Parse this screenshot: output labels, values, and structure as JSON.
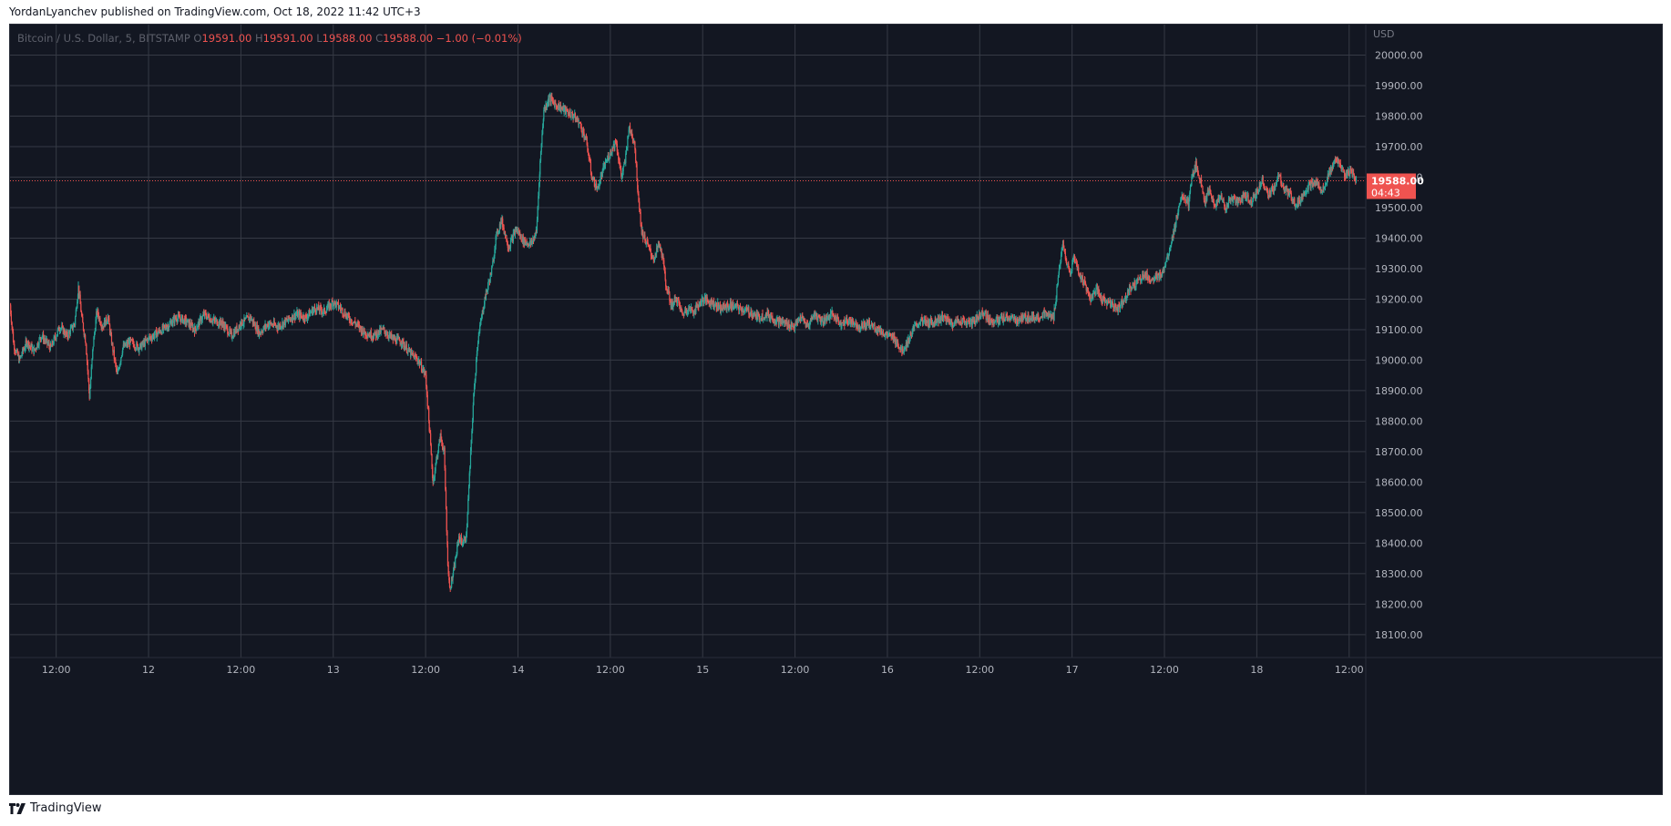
{
  "header": {
    "publish_line": "YordanLyanchev published on TradingView.com, Oct 18, 2022 11:42 UTC+3"
  },
  "legend": {
    "symbol": "Bitcoin / U.S. Dollar, 5, BITSTAMP",
    "o_label": "O",
    "o_value": "19591.00",
    "h_label": "H",
    "h_value": "19591.00",
    "l_label": "L",
    "l_value": "19588.00",
    "c_label": "C",
    "c_value": "19588.00",
    "change": "−1.00 (−0.01%)"
  },
  "footer": {
    "brand": "TradingView"
  },
  "colors": {
    "background": "#131722",
    "grid": "#363a45",
    "up": "#26a69a",
    "down": "#ef5350",
    "axis_text": "#b2b5be",
    "price_line": "#ef5350"
  },
  "chart_data": {
    "type": "candlestick",
    "symbol": "Bitcoin / U.S. Dollar",
    "interval": "5",
    "exchange": "BITSTAMP",
    "currency": "USD",
    "grid": true,
    "ylim": [
      18025,
      20100
    ],
    "y_ticks": [
      20000,
      19900,
      19800,
      19700,
      19600,
      19500,
      19400,
      19300,
      19200,
      19100,
      19000,
      18900,
      18800,
      18700,
      18600,
      18500,
      18400,
      18300,
      18200,
      18100
    ],
    "y_tick_labels": [
      "20000.00",
      "19900.00",
      "19800.00",
      "19700.00",
      "19600.00",
      "19500.00",
      "19400.00",
      "19300.00",
      "19200.00",
      "19100.00",
      "19000.00",
      "18900.00",
      "18800.00",
      "18700.00",
      "18600.00",
      "18500.00",
      "18400.00",
      "18300.00",
      "18200.00",
      "18100.00"
    ],
    "x_range_days": [
      11.25,
      18.59
    ],
    "x_ticks": [
      11.5,
      12.0,
      12.5,
      13.0,
      13.5,
      14.0,
      14.5,
      15.0,
      15.5,
      16.0,
      16.5,
      17.0,
      17.5,
      18.0,
      18.5
    ],
    "x_tick_labels": [
      "12:00",
      "12",
      "12:00",
      "13",
      "12:00",
      "14",
      "12:00",
      "15",
      "12:00",
      "16",
      "12:00",
      "17",
      "12:00",
      "18",
      "12:00"
    ],
    "last_price": "19588.00",
    "last_price_value": 19588,
    "countdown": "04:43",
    "close_path_day_price": [
      [
        11.25,
        19180
      ],
      [
        11.27,
        19050
      ],
      [
        11.3,
        19000
      ],
      [
        11.34,
        19060
      ],
      [
        11.38,
        19030
      ],
      [
        11.42,
        19080
      ],
      [
        11.47,
        19040
      ],
      [
        11.52,
        19110
      ],
      [
        11.56,
        19080
      ],
      [
        11.6,
        19120
      ],
      [
        11.62,
        19240
      ],
      [
        11.64,
        19130
      ],
      [
        11.66,
        19060
      ],
      [
        11.68,
        18880
      ],
      [
        11.7,
        19050
      ],
      [
        11.72,
        19160
      ],
      [
        11.75,
        19110
      ],
      [
        11.78,
        19140
      ],
      [
        11.8,
        19060
      ],
      [
        11.83,
        18950
      ],
      [
        11.86,
        19040
      ],
      [
        11.9,
        19060
      ],
      [
        11.95,
        19040
      ],
      [
        12.0,
        19070
      ],
      [
        12.05,
        19090
      ],
      [
        12.1,
        19110
      ],
      [
        12.15,
        19140
      ],
      [
        12.2,
        19130
      ],
      [
        12.25,
        19100
      ],
      [
        12.3,
        19150
      ],
      [
        12.35,
        19130
      ],
      [
        12.4,
        19120
      ],
      [
        12.45,
        19080
      ],
      [
        12.5,
        19120
      ],
      [
        12.55,
        19140
      ],
      [
        12.6,
        19090
      ],
      [
        12.65,
        19120
      ],
      [
        12.7,
        19110
      ],
      [
        12.75,
        19130
      ],
      [
        12.8,
        19150
      ],
      [
        12.85,
        19140
      ],
      [
        12.9,
        19170
      ],
      [
        12.95,
        19160
      ],
      [
        13.0,
        19190
      ],
      [
        13.04,
        19170
      ],
      [
        13.08,
        19140
      ],
      [
        13.12,
        19120
      ],
      [
        13.17,
        19090
      ],
      [
        13.22,
        19080
      ],
      [
        13.27,
        19100
      ],
      [
        13.32,
        19070
      ],
      [
        13.37,
        19060
      ],
      [
        13.42,
        19020
      ],
      [
        13.46,
        19000
      ],
      [
        13.5,
        18950
      ],
      [
        13.52,
        18780
      ],
      [
        13.54,
        18600
      ],
      [
        13.56,
        18680
      ],
      [
        13.58,
        18750
      ],
      [
        13.6,
        18700
      ],
      [
        13.62,
        18340
      ],
      [
        13.63,
        18250
      ],
      [
        13.65,
        18300
      ],
      [
        13.68,
        18420
      ],
      [
        13.7,
        18400
      ],
      [
        13.72,
        18420
      ],
      [
        13.74,
        18650
      ],
      [
        13.76,
        18880
      ],
      [
        13.78,
        19050
      ],
      [
        13.8,
        19130
      ],
      [
        13.82,
        19200
      ],
      [
        13.84,
        19250
      ],
      [
        13.86,
        19300
      ],
      [
        13.88,
        19400
      ],
      [
        13.91,
        19460
      ],
      [
        13.95,
        19370
      ],
      [
        13.99,
        19430
      ],
      [
        14.03,
        19390
      ],
      [
        14.07,
        19380
      ],
      [
        14.1,
        19420
      ],
      [
        14.12,
        19650
      ],
      [
        14.14,
        19820
      ],
      [
        14.17,
        19860
      ],
      [
        14.2,
        19840
      ],
      [
        14.25,
        19820
      ],
      [
        14.3,
        19800
      ],
      [
        14.33,
        19780
      ],
      [
        14.37,
        19720
      ],
      [
        14.4,
        19600
      ],
      [
        14.43,
        19560
      ],
      [
        14.47,
        19640
      ],
      [
        14.5,
        19680
      ],
      [
        14.53,
        19720
      ],
      [
        14.56,
        19600
      ],
      [
        14.58,
        19650
      ],
      [
        14.6,
        19760
      ],
      [
        14.63,
        19720
      ],
      [
        14.65,
        19550
      ],
      [
        14.67,
        19420
      ],
      [
        14.7,
        19380
      ],
      [
        14.72,
        19350
      ],
      [
        14.74,
        19330
      ],
      [
        14.76,
        19380
      ],
      [
        14.78,
        19350
      ],
      [
        14.8,
        19250
      ],
      [
        14.83,
        19180
      ],
      [
        14.86,
        19200
      ],
      [
        14.89,
        19150
      ],
      [
        14.92,
        19170
      ],
      [
        14.95,
        19160
      ],
      [
        15.0,
        19200
      ],
      [
        15.05,
        19190
      ],
      [
        15.1,
        19170
      ],
      [
        15.15,
        19180
      ],
      [
        15.2,
        19170
      ],
      [
        15.25,
        19160
      ],
      [
        15.3,
        19140
      ],
      [
        15.35,
        19150
      ],
      [
        15.4,
        19130
      ],
      [
        15.45,
        19120
      ],
      [
        15.5,
        19110
      ],
      [
        15.53,
        19140
      ],
      [
        15.57,
        19110
      ],
      [
        15.6,
        19150
      ],
      [
        15.65,
        19130
      ],
      [
        15.7,
        19150
      ],
      [
        15.75,
        19120
      ],
      [
        15.8,
        19130
      ],
      [
        15.85,
        19110
      ],
      [
        15.9,
        19120
      ],
      [
        15.95,
        19100
      ],
      [
        16.0,
        19080
      ],
      [
        16.04,
        19070
      ],
      [
        16.08,
        19030
      ],
      [
        16.11,
        19060
      ],
      [
        16.14,
        19100
      ],
      [
        16.18,
        19130
      ],
      [
        16.22,
        19120
      ],
      [
        16.26,
        19130
      ],
      [
        16.3,
        19140
      ],
      [
        16.35,
        19120
      ],
      [
        16.4,
        19130
      ],
      [
        16.45,
        19120
      ],
      [
        16.49,
        19140
      ],
      [
        16.52,
        19160
      ],
      [
        16.55,
        19130
      ],
      [
        16.6,
        19130
      ],
      [
        16.65,
        19140
      ],
      [
        16.7,
        19130
      ],
      [
        16.75,
        19140
      ],
      [
        16.8,
        19140
      ],
      [
        16.85,
        19150
      ],
      [
        16.9,
        19140
      ],
      [
        16.93,
        19300
      ],
      [
        16.95,
        19380
      ],
      [
        16.97,
        19320
      ],
      [
        16.99,
        19280
      ],
      [
        17.01,
        19340
      ],
      [
        17.04,
        19280
      ],
      [
        17.07,
        19250
      ],
      [
        17.1,
        19200
      ],
      [
        17.13,
        19230
      ],
      [
        17.16,
        19200
      ],
      [
        17.19,
        19190
      ],
      [
        17.22,
        19180
      ],
      [
        17.25,
        19170
      ],
      [
        17.28,
        19200
      ],
      [
        17.31,
        19230
      ],
      [
        17.34,
        19250
      ],
      [
        17.37,
        19270
      ],
      [
        17.4,
        19280
      ],
      [
        17.43,
        19260
      ],
      [
        17.46,
        19270
      ],
      [
        17.49,
        19290
      ],
      [
        17.52,
        19350
      ],
      [
        17.55,
        19420
      ],
      [
        17.57,
        19480
      ],
      [
        17.6,
        19540
      ],
      [
        17.63,
        19510
      ],
      [
        17.65,
        19600
      ],
      [
        17.67,
        19640
      ],
      [
        17.7,
        19580
      ],
      [
        17.72,
        19520
      ],
      [
        17.74,
        19560
      ],
      [
        17.77,
        19500
      ],
      [
        17.8,
        19540
      ],
      [
        17.83,
        19500
      ],
      [
        17.86,
        19530
      ],
      [
        17.9,
        19520
      ],
      [
        17.94,
        19540
      ],
      [
        17.97,
        19520
      ],
      [
        18.0,
        19550
      ],
      [
        18.03,
        19590
      ],
      [
        18.06,
        19540
      ],
      [
        18.09,
        19560
      ],
      [
        18.12,
        19600
      ],
      [
        18.15,
        19560
      ],
      [
        18.18,
        19540
      ],
      [
        18.21,
        19510
      ],
      [
        18.25,
        19540
      ],
      [
        18.28,
        19570
      ],
      [
        18.32,
        19580
      ],
      [
        18.36,
        19560
      ],
      [
        18.4,
        19620
      ],
      [
        18.43,
        19660
      ],
      [
        18.45,
        19640
      ],
      [
        18.48,
        19600
      ],
      [
        18.51,
        19620
      ],
      [
        18.54,
        19588
      ]
    ]
  }
}
